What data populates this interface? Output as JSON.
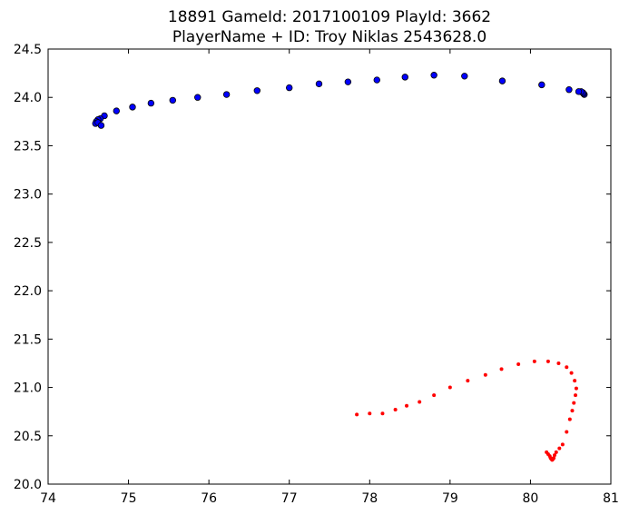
{
  "chart_data": {
    "type": "scatter",
    "title_line1": "18891 GameId: 2017100109 PlayId: 3662",
    "title_line2": "PlayerName + ID: Troy Niklas 2543628.0",
    "xlabel": "",
    "ylabel": "",
    "xlim": [
      74,
      81
    ],
    "ylim": [
      20.0,
      24.5
    ],
    "xticks": [
      "74",
      "75",
      "76",
      "77",
      "78",
      "79",
      "80",
      "81"
    ],
    "yticks": [
      "20.0",
      "20.5",
      "21.0",
      "21.5",
      "22.0",
      "22.5",
      "23.0",
      "23.5",
      "24.0",
      "24.5"
    ],
    "grid": false,
    "series": [
      {
        "color": "#0000ff",
        "marker": "large-dot",
        "x": [
          80.67,
          80.66,
          80.65,
          80.63,
          80.6,
          80.48,
          80.14,
          79.65,
          79.18,
          78.8,
          78.44,
          78.09,
          77.73,
          77.37,
          77.0,
          76.6,
          76.22,
          75.86,
          75.55,
          75.28,
          75.05,
          74.85,
          74.7,
          74.65,
          74.62,
          74.6,
          74.59,
          74.62,
          74.66
        ],
        "y": [
          24.03,
          24.04,
          24.05,
          24.06,
          24.06,
          24.08,
          24.13,
          24.17,
          24.22,
          24.23,
          24.21,
          24.18,
          24.16,
          24.14,
          24.1,
          24.07,
          24.03,
          24.0,
          23.97,
          23.94,
          23.9,
          23.86,
          23.81,
          23.78,
          23.77,
          23.75,
          23.73,
          23.74,
          23.71
        ]
      },
      {
        "color": "#ff0000",
        "marker": "small-dot",
        "x": [
          77.84,
          78.0,
          78.16,
          78.32,
          78.46,
          78.62,
          78.8,
          79.0,
          79.22,
          79.44,
          79.64,
          79.85,
          80.05,
          80.22,
          80.35,
          80.45,
          80.51,
          80.55,
          80.57,
          80.56,
          80.54,
          80.52,
          80.49,
          80.45,
          80.4,
          80.36,
          80.32,
          80.3,
          80.29,
          80.28,
          80.27,
          80.26,
          80.25,
          80.24,
          80.22,
          80.2
        ],
        "y": [
          20.72,
          20.73,
          20.73,
          20.77,
          20.81,
          20.85,
          20.92,
          21.0,
          21.07,
          21.13,
          21.19,
          21.24,
          21.27,
          21.27,
          21.25,
          21.21,
          21.15,
          21.07,
          20.99,
          20.92,
          20.84,
          20.76,
          20.67,
          20.54,
          20.41,
          20.37,
          20.33,
          20.3,
          20.27,
          20.26,
          20.25,
          20.26,
          20.27,
          20.29,
          20.31,
          20.33
        ]
      }
    ]
  }
}
